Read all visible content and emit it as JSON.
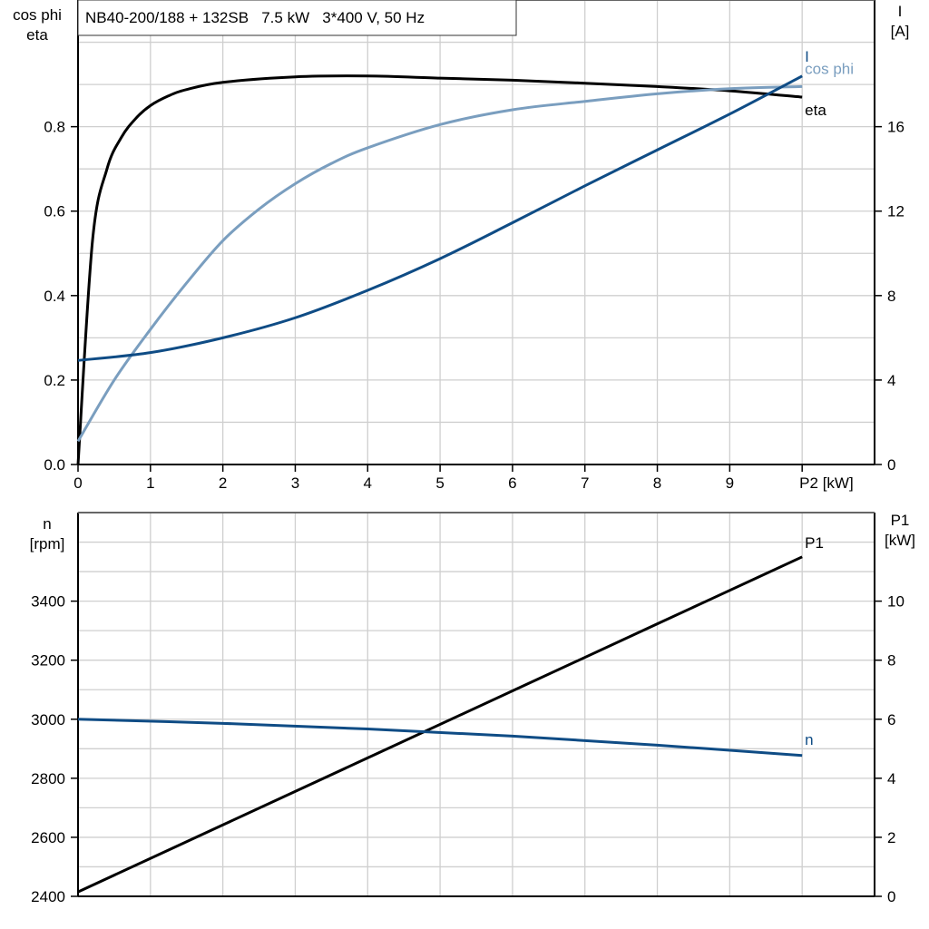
{
  "title": "NB40-200/188 + 132SB   7.5 kW   3*400 V, 50 Hz",
  "colors": {
    "eta": "#000000",
    "cos_phi": "#7a9ebf",
    "I": "#0f4c85",
    "P1": "#000000",
    "n": "#0f4c85",
    "grid": "#cfcfcf"
  },
  "chart_data": [
    {
      "type": "line",
      "xlabel": "P2 [kW]",
      "xlim": [
        0,
        11
      ],
      "xticks": [
        "0",
        "1",
        "2",
        "3",
        "4",
        "5",
        "6",
        "7",
        "8",
        "9"
      ],
      "ylabel_left": [
        "cos phi",
        "eta"
      ],
      "ylim_left": [
        0,
        1.1
      ],
      "yticks_left": [
        "0.0",
        "0.2",
        "0.4",
        "0.6",
        "0.8"
      ],
      "ylabel_right": [
        "I",
        "[A]"
      ],
      "ylim_right": [
        0,
        22
      ],
      "yticks_right": [
        "0",
        "4",
        "8",
        "12",
        "16"
      ],
      "grid": true,
      "series": [
        {
          "name": "eta",
          "axis": "left",
          "x": [
            0,
            0.2,
            0.4,
            0.6,
            0.8,
            1,
            1.25,
            1.5,
            2,
            3,
            4,
            5,
            6,
            7,
            8,
            9,
            10
          ],
          "y": [
            0,
            0.53,
            0.7,
            0.775,
            0.82,
            0.85,
            0.873,
            0.888,
            0.905,
            0.918,
            0.92,
            0.915,
            0.91,
            0.903,
            0.895,
            0.885,
            0.87
          ]
        },
        {
          "name": "cos phi",
          "axis": "left",
          "x": [
            0,
            0.5,
            1,
            1.5,
            2,
            2.5,
            3,
            3.5,
            4,
            5,
            6,
            7,
            8,
            9,
            10
          ],
          "y": [
            0.055,
            0.2,
            0.32,
            0.43,
            0.53,
            0.605,
            0.665,
            0.713,
            0.75,
            0.805,
            0.84,
            0.86,
            0.878,
            0.89,
            0.895
          ]
        },
        {
          "name": "I",
          "axis": "right",
          "x": [
            0,
            1,
            2,
            3,
            4,
            5,
            6,
            7,
            8,
            9,
            10
          ],
          "y": [
            4.93,
            5.3,
            6.0,
            6.95,
            8.25,
            9.75,
            11.45,
            13.2,
            14.9,
            16.6,
            18.4
          ]
        }
      ]
    },
    {
      "type": "line",
      "xlim": [
        0,
        11
      ],
      "ylabel_left": [
        "n",
        "[rpm]"
      ],
      "ylim_left": [
        2400,
        3700
      ],
      "yticks_left": [
        "2400",
        "2600",
        "2800",
        "3000",
        "3200",
        "3400"
      ],
      "ylabel_right": [
        "P1",
        "[kW]"
      ],
      "ylim_right": [
        0,
        13
      ],
      "yticks_right": [
        "0",
        "2",
        "4",
        "6",
        "8",
        "10"
      ],
      "grid": true,
      "series": [
        {
          "name": "P1",
          "axis": "right",
          "x": [
            0,
            2,
            4,
            6,
            8,
            10
          ],
          "y": [
            0.15,
            2.42,
            4.69,
            6.96,
            9.23,
            11.5
          ]
        },
        {
          "name": "n",
          "axis": "left",
          "x": [
            0,
            2,
            4,
            6,
            8,
            10
          ],
          "y": [
            3000,
            2986,
            2967,
            2943,
            2912,
            2877
          ]
        }
      ]
    }
  ]
}
